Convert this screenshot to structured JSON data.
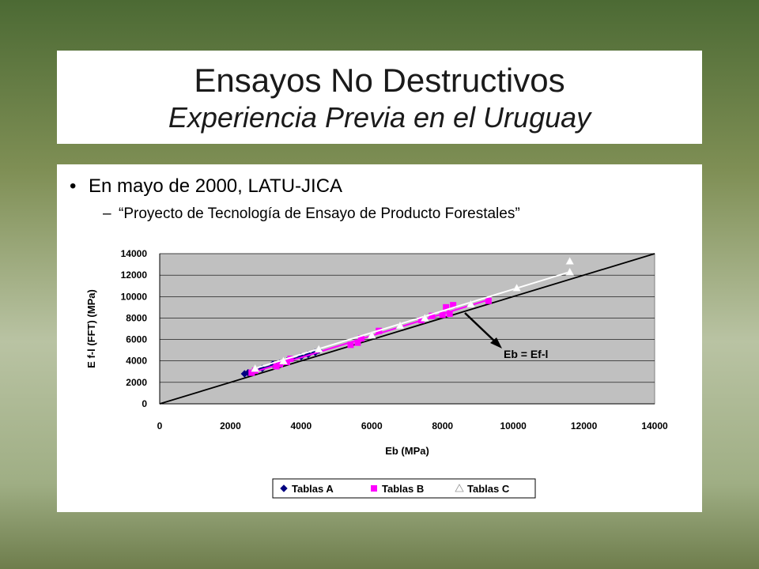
{
  "slide": {
    "title": "Ensayos No Destructivos",
    "subtitle": "Experiencia Previa en el Uruguay",
    "bullet1": "En mayo de 2000, LATU-JICA",
    "bullet2": "“Proyecto de Tecnología de Ensayo de Producto Forestales”"
  },
  "chart_data": {
    "type": "scatter",
    "xlabel": "Eb (MPa)",
    "ylabel": "E f-l (FFT) (MPa)",
    "xlim": [
      0,
      14000
    ],
    "ylim": [
      0,
      14000
    ],
    "xticks": [
      0,
      2000,
      4000,
      6000,
      8000,
      10000,
      12000,
      14000
    ],
    "yticks": [
      0,
      2000,
      4000,
      6000,
      8000,
      10000,
      12000,
      14000
    ],
    "grid": true,
    "plot_background": "#c0c0c0",
    "legend_position": "bottom",
    "annotation": "Eb = Ef-l",
    "reference_line": {
      "x": [
        0,
        14000
      ],
      "y": [
        0,
        14000
      ]
    },
    "series": [
      {
        "name": "Tablas A",
        "color": "#000080",
        "marker": "diamond",
        "points": [
          [
            2400,
            2800
          ],
          [
            2500,
            2900
          ],
          [
            2900,
            3300
          ],
          [
            3200,
            3700
          ],
          [
            3400,
            3800
          ],
          [
            3600,
            4000
          ],
          [
            4000,
            4400
          ],
          [
            4200,
            4600
          ],
          [
            4400,
            4800
          ],
          [
            4500,
            5000
          ]
        ],
        "trend": [
          [
            2400,
            2800
          ],
          [
            4500,
            4900
          ]
        ]
      },
      {
        "name": "Tablas B",
        "color": "#ff00ff",
        "marker": "square",
        "points": [
          [
            2600,
            2900
          ],
          [
            2700,
            3100
          ],
          [
            3300,
            3500
          ],
          [
            3400,
            3700
          ],
          [
            3600,
            3900
          ],
          [
            3700,
            4200
          ],
          [
            5400,
            5500
          ],
          [
            5600,
            5700
          ],
          [
            5700,
            6100
          ],
          [
            6200,
            6800
          ],
          [
            7400,
            7800
          ],
          [
            7700,
            8200
          ],
          [
            8000,
            8300
          ],
          [
            8100,
            9000
          ],
          [
            8200,
            8400
          ],
          [
            8300,
            9200
          ],
          [
            9300,
            9600
          ]
        ],
        "trend": [
          [
            2600,
            2900
          ],
          [
            9300,
            9700
          ]
        ]
      },
      {
        "name": "Tablas C",
        "color": "#ffffff",
        "marker": "triangle",
        "points": [
          [
            2700,
            3300
          ],
          [
            3500,
            4000
          ],
          [
            4500,
            5100
          ],
          [
            6000,
            6400
          ],
          [
            6800,
            7300
          ],
          [
            7500,
            8000
          ],
          [
            8800,
            9300
          ],
          [
            10100,
            10800
          ],
          [
            11600,
            12300
          ],
          [
            11600,
            13300
          ]
        ],
        "trend": [
          [
            2700,
            3300
          ],
          [
            11600,
            12300
          ]
        ]
      }
    ]
  }
}
